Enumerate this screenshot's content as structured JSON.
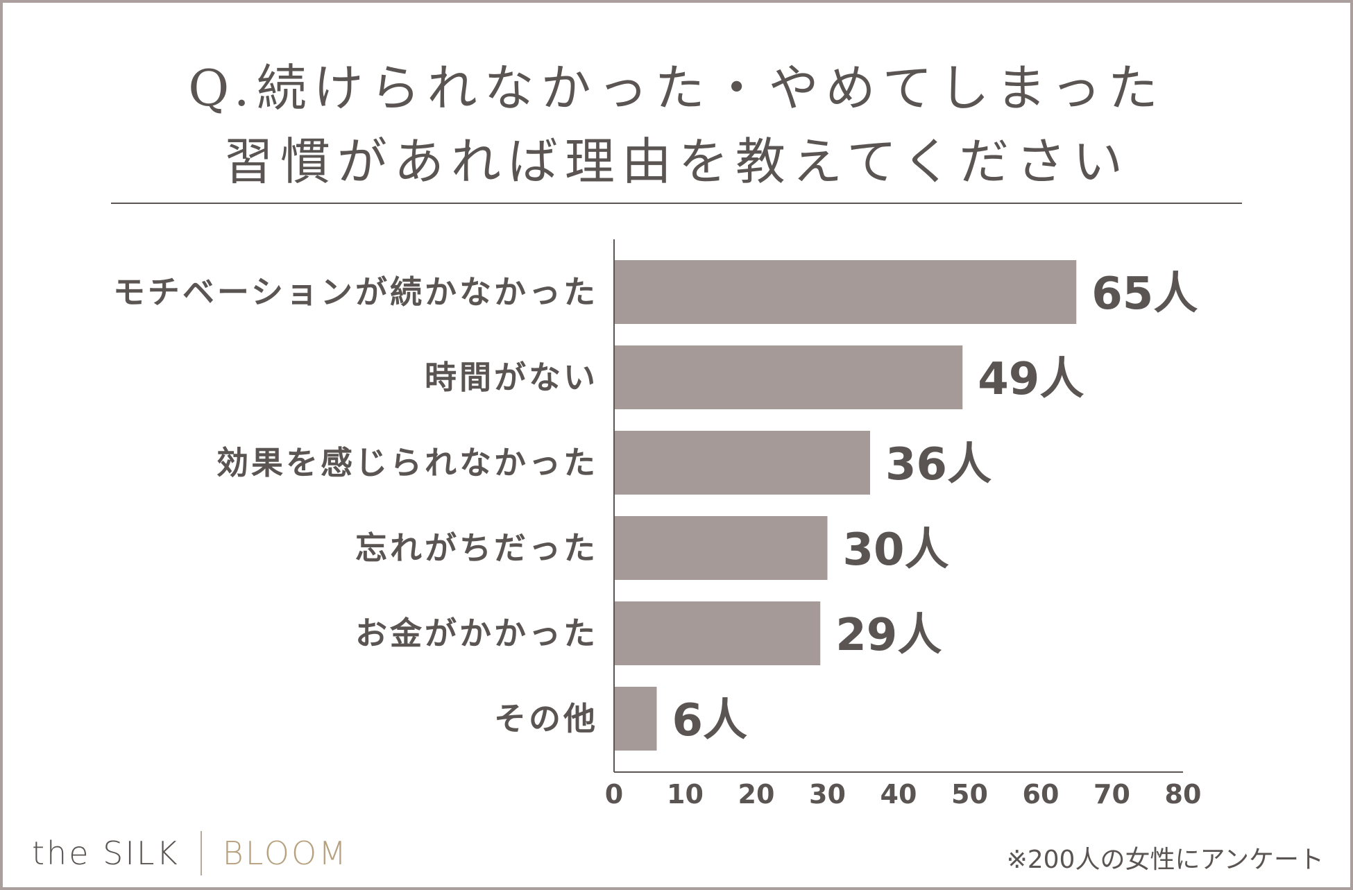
{
  "header": {
    "title_line1": "Q.続けられなかった・やめてしまった",
    "title_line2": "習慣があれば理由を教えてください"
  },
  "chart_data": {
    "type": "bar",
    "orientation": "horizontal",
    "categories": [
      "モチベーションが続かなかった",
      "時間がない",
      "効果を感じられなかった",
      "忘れがちだった",
      "お金がかかった",
      "その他"
    ],
    "values": [
      65,
      49,
      36,
      30,
      29,
      6
    ],
    "value_labels": [
      "65人",
      "49人",
      "36人",
      "30人",
      "29人",
      "6人"
    ],
    "xlim": [
      0,
      80
    ],
    "xticks": [
      "0",
      "10",
      "20",
      "30",
      "40",
      "50",
      "60",
      "70",
      "80"
    ],
    "grid": false,
    "bar_color": "#a69a98",
    "text_color": "#5a5552"
  },
  "footer": {
    "brand_left": "the SILK",
    "brand_right": "BLOOM",
    "note": "※200人の女性にアンケート"
  }
}
